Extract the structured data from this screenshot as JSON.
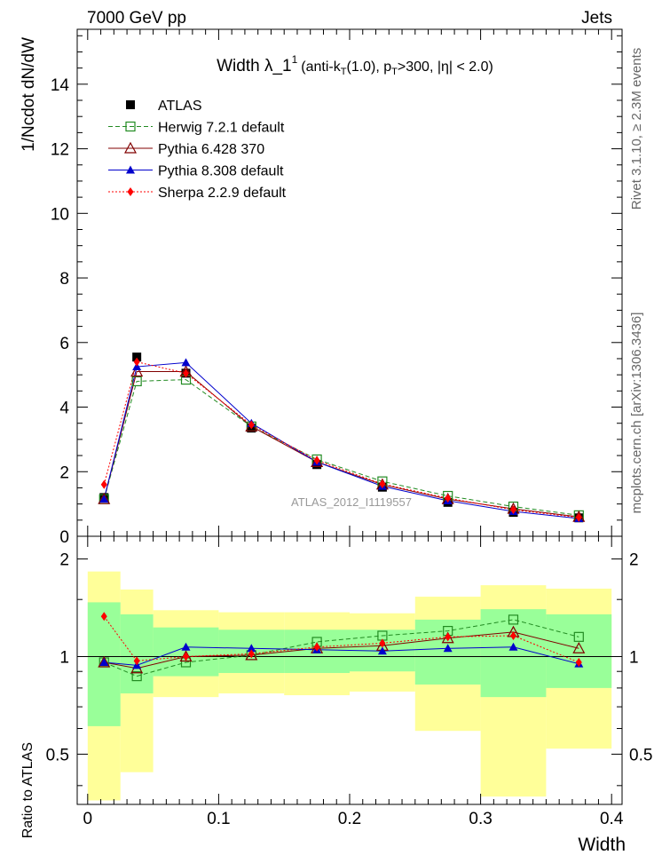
{
  "header": {
    "energy_label": "7000 GeV pp",
    "process_label": "Jets"
  },
  "side_labels": {
    "rivet": "Rivet 3.1.10, ≥ 2.3M events",
    "source": "mcplots.cern.ch [arXiv:1306.3436]"
  },
  "chart_data": [
    {
      "type": "line",
      "title": "Width λ_1¹ (anti-kₜ(1.0), pₜ>300, |η| < 2.0)",
      "title_parts": {
        "main": "Width λ_1",
        "sup": "1",
        "p1": "(anti-k",
        "sub1": "T",
        "p2": "(1.0), p",
        "sub2": "T",
        "p3": ">300, |η| < 2.0)"
      },
      "ylabel": "1/Ncdot dN/dW",
      "xlim": [
        -0.008,
        0.408
      ],
      "ylim": [
        0,
        15.7
      ],
      "yticks": [
        0,
        2,
        4,
        6,
        8,
        10,
        12,
        14
      ],
      "log_y": false,
      "legend_position": "top-left",
      "watermark": "ATLAS_2012_I1119557",
      "x": [
        0.0125,
        0.0375,
        0.075,
        0.125,
        0.175,
        0.225,
        0.275,
        0.325,
        0.375
      ],
      "series": [
        {
          "name": "ATLAS",
          "color": "#000000",
          "marker": "square",
          "line": "none",
          "values": [
            1.2,
            5.55,
            5.05,
            3.35,
            2.22,
            1.52,
            1.05,
            0.74,
            0.57
          ]
        },
        {
          "name": "Herwig 7.2.1 default",
          "color": "#228b22",
          "marker": "open-square",
          "line": "dashed",
          "values": [
            1.15,
            4.8,
            4.85,
            3.4,
            2.38,
            1.7,
            1.25,
            0.92,
            0.65
          ]
        },
        {
          "name": "Pythia 6.428 370",
          "color": "#800000",
          "marker": "open-triangle",
          "line": "solid",
          "values": [
            1.15,
            5.1,
            5.1,
            3.4,
            2.3,
            1.6,
            1.15,
            0.85,
            0.6
          ]
        },
        {
          "name": "Pythia 8.308 default",
          "color": "#0000cc",
          "marker": "triangle",
          "line": "solid",
          "values": [
            1.15,
            5.25,
            5.38,
            3.5,
            2.3,
            1.55,
            1.1,
            0.77,
            0.55
          ]
        },
        {
          "name": "Sherpa 2.2.9 default",
          "color": "#ff0000",
          "marker": "diamond",
          "line": "dotted",
          "values": [
            1.6,
            5.4,
            5.05,
            3.45,
            2.35,
            1.62,
            1.18,
            0.82,
            0.58
          ]
        }
      ]
    },
    {
      "type": "line",
      "xlabel": "Width",
      "ylabel": "Ratio to ATLAS",
      "xlim": [
        -0.008,
        0.408
      ],
      "ylim": [
        0.35,
        2.35
      ],
      "yticks": [
        0.5,
        1,
        2
      ],
      "ytick_labels": [
        "0.5",
        "1",
        "2"
      ],
      "xticks": [
        0,
        0.1,
        0.2,
        0.3,
        0.4
      ],
      "xtick_labels": [
        "0",
        "0.1",
        "0.2",
        "0.3",
        "0.4"
      ],
      "log_y": true,
      "reference_line": 1,
      "bin_edges": [
        0,
        0.025,
        0.05,
        0.1,
        0.15,
        0.2,
        0.25,
        0.3,
        0.35,
        0.4
      ],
      "uncertainty_bands": {
        "total": {
          "color": "#ffff99",
          "low": [
            0.36,
            0.44,
            0.75,
            0.77,
            0.76,
            0.78,
            0.59,
            0.37,
            0.52
          ],
          "high": [
            1.83,
            1.61,
            1.39,
            1.37,
            1.37,
            1.36,
            1.53,
            1.66,
            1.62
          ]
        },
        "statistical": {
          "color": "#99ff99",
          "low": [
            0.61,
            0.77,
            0.87,
            0.89,
            0.89,
            0.9,
            0.82,
            0.75,
            0.8
          ],
          "high": [
            1.47,
            1.35,
            1.23,
            1.21,
            1.21,
            1.21,
            1.3,
            1.4,
            1.35
          ]
        }
      },
      "x": [
        0.0125,
        0.0375,
        0.075,
        0.125,
        0.175,
        0.225,
        0.275,
        0.325,
        0.375
      ],
      "series": [
        {
          "name": "Herwig 7.2.1 default",
          "color": "#228b22",
          "marker": "open-square",
          "line": "dashed",
          "values": [
            0.96,
            0.87,
            0.96,
            1.01,
            1.11,
            1.16,
            1.2,
            1.3,
            1.15
          ]
        },
        {
          "name": "Pythia 6.428 370",
          "color": "#800000",
          "marker": "open-triangle",
          "line": "solid",
          "values": [
            0.96,
            0.92,
            1.0,
            1.01,
            1.06,
            1.08,
            1.14,
            1.19,
            1.06
          ]
        },
        {
          "name": "Pythia 8.308 default",
          "color": "#0000cc",
          "marker": "triangle",
          "line": "solid",
          "values": [
            0.96,
            0.94,
            1.07,
            1.06,
            1.05,
            1.04,
            1.06,
            1.07,
            0.95
          ]
        },
        {
          "name": "Sherpa 2.2.9 default",
          "color": "#ff0000",
          "marker": "diamond",
          "line": "dotted",
          "values": [
            1.33,
            0.97,
            1.0,
            1.02,
            1.07,
            1.1,
            1.15,
            1.16,
            0.96
          ]
        }
      ]
    }
  ]
}
